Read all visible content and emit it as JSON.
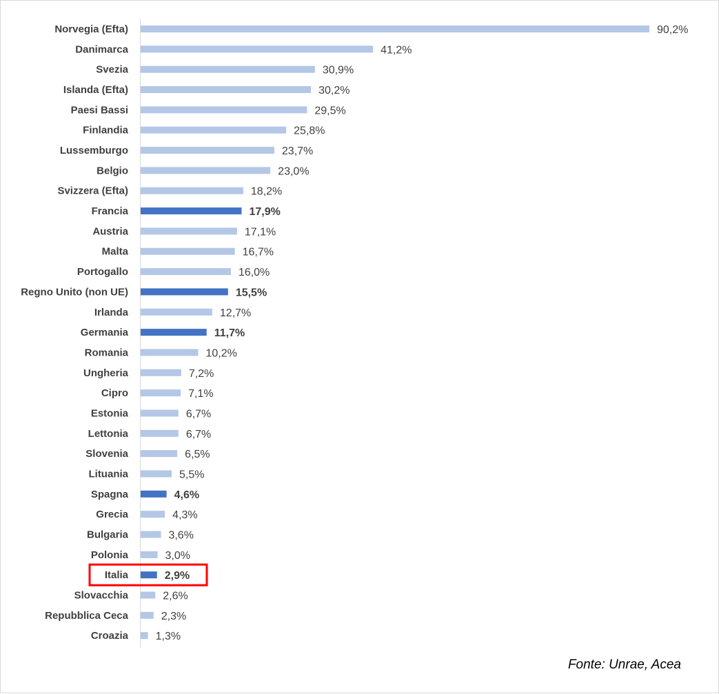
{
  "chart_data": {
    "type": "bar",
    "orientation": "horizontal",
    "categories": [
      "Norvegia (Efta)",
      "Danimarca",
      "Svezia",
      "Islanda (Efta)",
      "Paesi Bassi",
      "Finlandia",
      "Lussemburgo",
      "Belgio",
      "Svizzera (Efta)",
      "Francia",
      "Austria",
      "Malta",
      "Portogallo",
      "Regno Unito (non UE)",
      "Irlanda",
      "Germania",
      "Romania",
      "Ungheria",
      "Cipro",
      "Estonia",
      "Lettonia",
      "Slovenia",
      "Lituania",
      "Spagna",
      "Grecia",
      "Bulgaria",
      "Polonia",
      "Italia",
      "Slovacchia",
      "Repubblica Ceca",
      "Croazia"
    ],
    "values": [
      90.2,
      41.2,
      30.9,
      30.2,
      29.5,
      25.8,
      23.7,
      23.0,
      18.2,
      17.9,
      17.1,
      16.7,
      16.0,
      15.5,
      12.7,
      11.7,
      10.2,
      7.2,
      7.1,
      6.7,
      6.7,
      6.5,
      5.5,
      4.6,
      4.3,
      3.6,
      3.0,
      2.9,
      2.6,
      2.3,
      1.3
    ],
    "value_labels": [
      "90,2%",
      "41,2%",
      "30,9%",
      "30,2%",
      "29,5%",
      "25,8%",
      "23,7%",
      "23,0%",
      "18,2%",
      "17,9%",
      "17,1%",
      "16,7%",
      "16,0%",
      "15,5%",
      "12,7%",
      "11,7%",
      "10,2%",
      "7,2%",
      "7,1%",
      "6,7%",
      "6,7%",
      "6,5%",
      "5,5%",
      "4,6%",
      "4,3%",
      "3,6%",
      "3,0%",
      "2,9%",
      "2,6%",
      "2,3%",
      "1,3%"
    ],
    "highlighted": [
      "Francia",
      "Regno Unito (non UE)",
      "Germania",
      "Spagna",
      "Italia"
    ],
    "boxed": "Italia",
    "xlim": [
      0,
      90.2
    ],
    "grid": false,
    "legend": "none",
    "colors": {
      "bar": "#b4c7e7",
      "highlight_bar": "#4472c4",
      "box": "#ff0000",
      "axis": "#d9d9d9",
      "text": "#404040"
    }
  },
  "source": "Fonte: Unrae, Acea"
}
